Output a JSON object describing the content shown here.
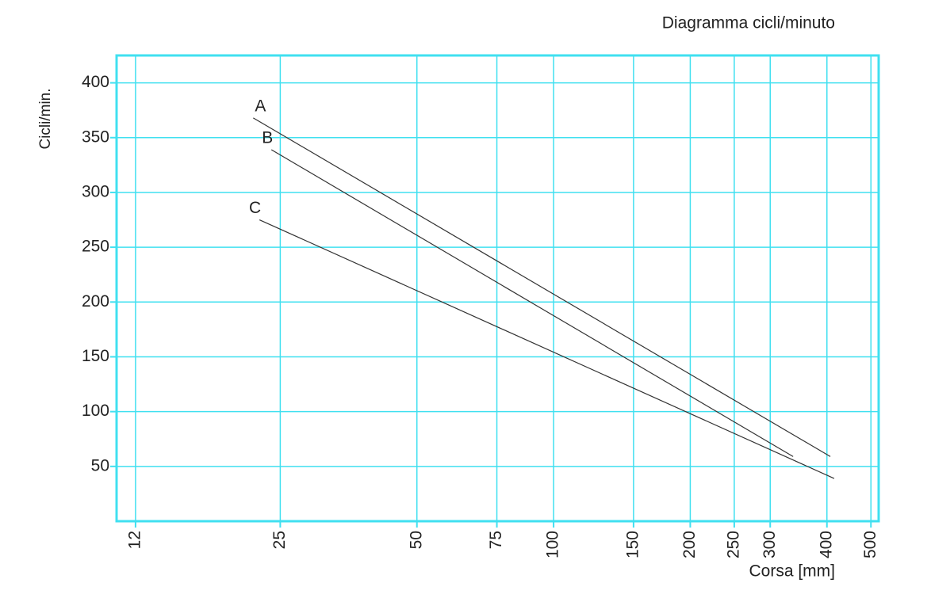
{
  "chart_data": {
    "type": "line",
    "title": "Diagramma cicli/minuto",
    "x_label": "Corsa [mm]",
    "y_label": "Cicli/min.",
    "x_scale": "log",
    "grid": true,
    "grid_color": "#40e0f0",
    "xlim": [
      10.9,
      520
    ],
    "xticks": [
      12,
      25,
      50,
      75,
      100,
      150,
      200,
      250,
      300,
      400,
      500
    ],
    "ylim": [
      0,
      425
    ],
    "yticks": [
      50,
      100,
      150,
      200,
      250,
      300,
      350,
      400
    ],
    "series": [
      {
        "name": "A",
        "color": "#333333",
        "x": [
          21.8,
          407
        ],
        "values": [
          368,
          59
        ]
      },
      {
        "name": "B",
        "color": "#333333",
        "x": [
          23.9,
          337
        ],
        "values": [
          339,
          59
        ]
      },
      {
        "name": "C",
        "color": "#333333",
        "x": [
          22.5,
          415
        ],
        "values": [
          275,
          39
        ]
      }
    ]
  }
}
